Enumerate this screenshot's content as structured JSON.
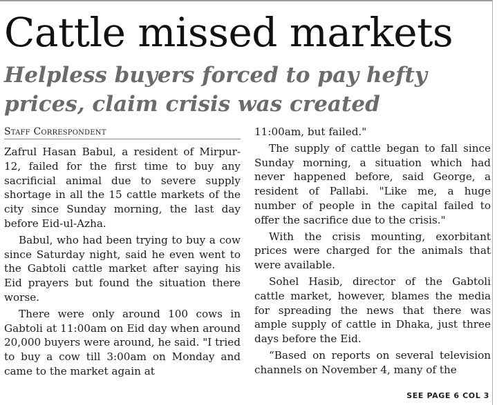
{
  "headline": "Cattle missed markets",
  "subheadline": "Helpless buyers forced to pay hefty prices, claim crisis was created",
  "byline": "Staff Correspondent",
  "left_column": {
    "paragraphs": [
      "Zafrul Hasan Babul, a resident of Mirpur-12, failed for the first time to buy any sacrificial animal due to severe supply shortage in all the 15 cattle markets of the city since Sunday morning, the last day before Eid-ul-Azha.",
      "Babul, who had been trying to buy a cow since Saturday night, said he even went to the Gabtoli cattle market after saying his Eid prayers but found the situation there worse.",
      "There were only around 100 cows in Gabtoli at 11:00am on Eid day when around 20,000 buyers were around, he said. \"I tried to buy a cow till 3:00am on Monday and came to the market again at"
    ]
  },
  "right_column": {
    "continuation": "11:00am, but failed.\"",
    "paragraphs": [
      "The supply of cattle began to fall since Sunday morning, a situation which had never happened before, said George, a resident of Pallabi. \"Like me, a huge number of people in the capital failed to offer the sacrifice due to the crisis.\"",
      "With the crisis mounting, exorbitant prices were charged for the animals that were available.",
      "Sohel Hasib, director of the Gabtoli cattle market, however, blames the media for spreading the news that there was ample supply of cattle in Dhaka, just three days before the Eid.",
      "“Based on reports on several television channels on November 4, many of the"
    ]
  },
  "jump_line": "SEE PAGE 6 COL 3"
}
